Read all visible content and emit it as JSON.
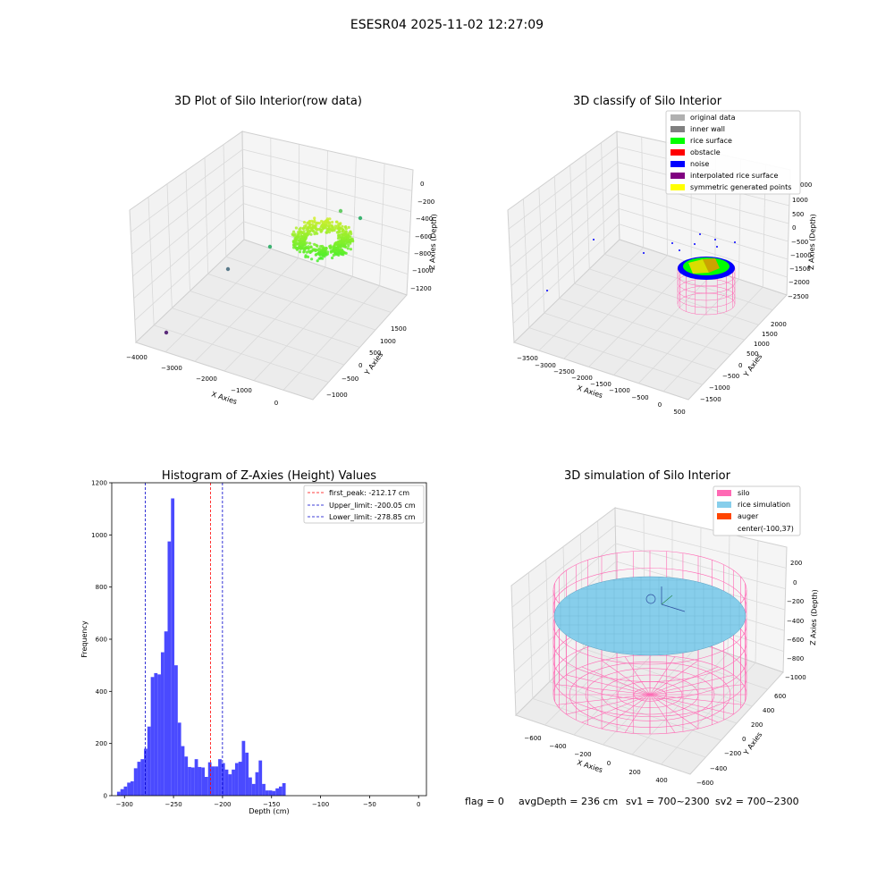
{
  "suptitle": "ESESR04 2025-11-02 12:27:09",
  "colors": {
    "hist_bar": "#4a4aff",
    "first_peak": "#ff0000",
    "limit": "#0000cc",
    "silo": "#ff69b4",
    "rice": "#87ceeb",
    "auger": "#ff4500",
    "inner_wall": "#808080",
    "rice_surface": "#00ff00",
    "obstacle": "#ff0000",
    "noise": "#0000ff",
    "interpolated": "#800080",
    "symmetric": "#ffff00",
    "original": "#b0b0b0"
  },
  "chart_data": [
    {
      "type": "scatter3d",
      "title": "3D Plot of Silo Interior(row data)",
      "xlabel": "X Axies",
      "ylabel": "Y Axies",
      "zlabel": "Z Axies (Depth)",
      "xticks": [
        "−4000",
        "−3000",
        "−2000",
        "−1000",
        "0"
      ],
      "yticks": [
        "−1000",
        "−500",
        "0",
        "500",
        "1000",
        "1500"
      ],
      "zticks": [
        "0",
        "−200",
        "−400",
        "−600",
        "−800",
        "−1000",
        "−1200"
      ]
    },
    {
      "type": "scatter3d",
      "title": "3D classify of Silo Interior",
      "xlabel": "X Axies",
      "ylabel": "Y Axies",
      "zlabel": "Z Axies (Depth)",
      "xticks": [
        "−3500",
        "−3000",
        "−2500",
        "−2000",
        "−1500",
        "−1000",
        "−500",
        "0",
        "500"
      ],
      "yticks": [
        "−1500",
        "−1000",
        "−500",
        "0",
        "500",
        "1000",
        "1500",
        "2000"
      ],
      "zticks": [
        "1000",
        "500",
        "0",
        "−500",
        "−1000",
        "−1500",
        "−2000",
        "−2500"
      ],
      "zticks_top_partial": "000",
      "legend": [
        "original data",
        "inner wall",
        "rice surface",
        "obstacle",
        "noise",
        "interpolated rice surface",
        "symmetric generated points"
      ]
    },
    {
      "type": "bar",
      "title": "Histogram of Z-Axies (Height) Values",
      "xlabel": "Depth (cm)",
      "ylabel": "Frequency",
      "xlim": [
        -313,
        8
      ],
      "ylim": [
        0,
        1200
      ],
      "xticks": [
        -300,
        -250,
        -200,
        -150,
        -100,
        -50,
        0
      ],
      "xtick_labels": [
        "−300",
        "−250",
        "−200",
        "−150",
        "−100",
        "−50",
        "0"
      ],
      "yticks": [
        0,
        200,
        400,
        600,
        800,
        1000,
        1200
      ],
      "bin_start": -307.6,
      "bin_width": 3.44,
      "values": [
        15,
        25,
        35,
        50,
        55,
        105,
        130,
        140,
        180,
        265,
        455,
        470,
        465,
        550,
        630,
        975,
        1140,
        500,
        280,
        190,
        150,
        110,
        108,
        140,
        110,
        108,
        72,
        128,
        112,
        112,
        140,
        125,
        100,
        82,
        100,
        125,
        130,
        210,
        165,
        70,
        45,
        90,
        135,
        45,
        20,
        20,
        18,
        28,
        35,
        48
      ],
      "lines": [
        {
          "label": "first_peak: -212.17 cm",
          "x": -212.17,
          "color": "#ff0000"
        },
        {
          "label": "Upper_limit: -200.05 cm",
          "x": -200.05,
          "color": "#0000cc"
        },
        {
          "label": "Lower_limit: -278.85 cm",
          "x": -278.85,
          "color": "#0000cc"
        }
      ]
    },
    {
      "type": "surface3d",
      "title": "3D simulation of Silo Interior",
      "xlabel": "X Axies",
      "ylabel": "Y Axies",
      "zlabel": "Z Axies (Depth)",
      "xticks": [
        "−600",
        "−400",
        "−200",
        "0",
        "200",
        "400"
      ],
      "yticks": [
        "−600",
        "−400",
        "−200",
        "0",
        "200",
        "400",
        "600"
      ],
      "zticks": [
        "200",
        "0",
        "−200",
        "−400",
        "−600",
        "−800",
        "−1000"
      ],
      "legend": [
        "silo",
        "rice simulation",
        "auger",
        "center(-100,37)"
      ]
    }
  ],
  "footer": {
    "flag": "flag = 0",
    "avg": "avgDepth = 236 cm",
    "sv1": "sv1 = 700~2300",
    "sv2": "sv2 = 700~2300"
  }
}
